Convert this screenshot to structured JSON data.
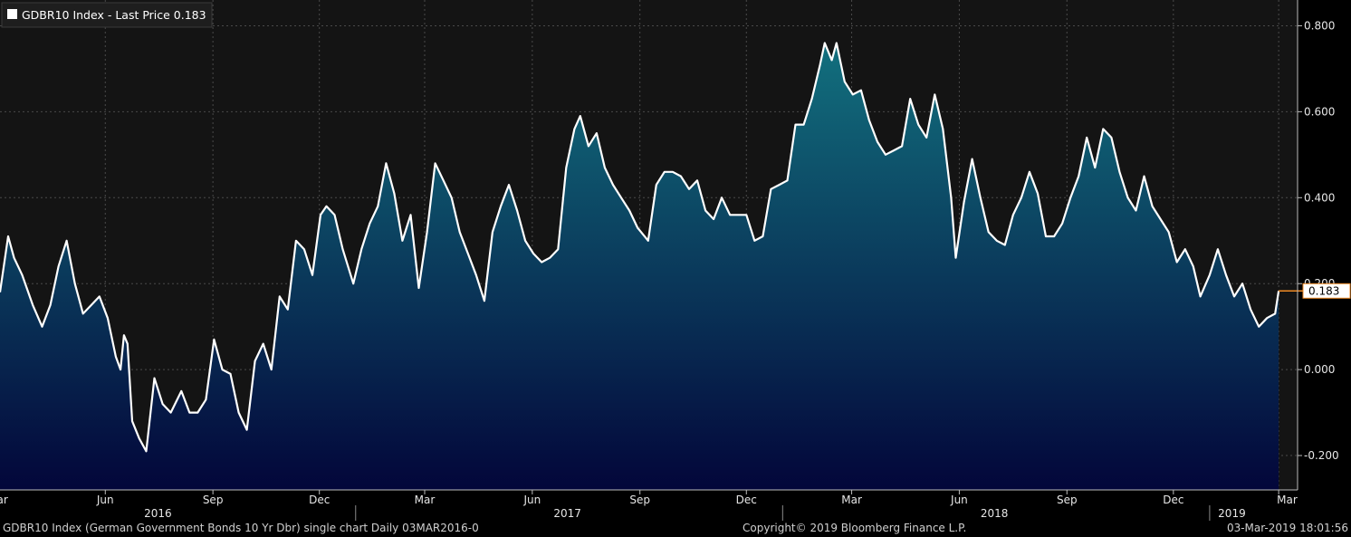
{
  "legend": {
    "text": "GDBR10 Index - Last Price 0.183"
  },
  "last_value_label": "0.183",
  "footer": {
    "left": "GDBR10 Index (German Government Bonds 10 Yr Dbr) single chart  Daily 03MAR2016-0",
    "middle": "Copyright© 2019 Bloomberg Finance L.P.",
    "right": "03-Mar-2019 18:01:56"
  },
  "colors": {
    "background_top": "#141414",
    "area_top": "#12707e",
    "area_bottom": "#03063a",
    "line": "#ffffff",
    "grid": "#4a4a4a",
    "last_marker": "#f08a24"
  },
  "chart_data": {
    "type": "area",
    "title": "GDBR10 Index - Last Price 0.183",
    "xlabel": "",
    "ylabel": "",
    "ylim": [
      -0.28,
      0.86
    ],
    "yticks": [
      -0.2,
      0.0,
      0.2,
      0.4,
      0.6,
      0.8
    ],
    "ytick_labels": [
      "-0.200",
      "0.000",
      "0.200",
      "0.400",
      "0.600",
      "0.800"
    ],
    "grid": true,
    "month_ticks": [
      {
        "label": "Mar",
        "date": "2016-03-01"
      },
      {
        "label": "Jun",
        "date": "2016-06-01"
      },
      {
        "label": "Sep",
        "date": "2016-09-01"
      },
      {
        "label": "Dec",
        "date": "2016-12-01"
      },
      {
        "label": "Mar",
        "date": "2017-03-01"
      },
      {
        "label": "Jun",
        "date": "2017-06-01"
      },
      {
        "label": "Sep",
        "date": "2017-09-01"
      },
      {
        "label": "Dec",
        "date": "2017-12-01"
      },
      {
        "label": "Mar",
        "date": "2018-03-01"
      },
      {
        "label": "Jun",
        "date": "2018-06-01"
      },
      {
        "label": "Sep",
        "date": "2018-09-01"
      },
      {
        "label": "Dec",
        "date": "2018-12-01"
      },
      {
        "label": "Mar",
        "date": "2019-03-01"
      }
    ],
    "year_labels": [
      {
        "label": "2016",
        "date": "2016-07-16"
      },
      {
        "label": "2017",
        "date": "2017-07-01"
      },
      {
        "label": "2018",
        "date": "2018-07-01"
      },
      {
        "label": "2019",
        "date": "2019-01-20"
      }
    ],
    "year_dividers": [
      "2017-01-01",
      "2018-01-01",
      "2019-01-01"
    ],
    "series": [
      {
        "name": "GDBR10 Index",
        "last": 0.183,
        "points": [
          [
            "2016-03-03",
            0.18
          ],
          [
            "2016-03-10",
            0.31
          ],
          [
            "2016-03-15",
            0.26
          ],
          [
            "2016-03-22",
            0.22
          ],
          [
            "2016-03-31",
            0.15
          ],
          [
            "2016-04-08",
            0.1
          ],
          [
            "2016-04-15",
            0.15
          ],
          [
            "2016-04-22",
            0.24
          ],
          [
            "2016-04-29",
            0.3
          ],
          [
            "2016-05-06",
            0.2
          ],
          [
            "2016-05-13",
            0.13
          ],
          [
            "2016-05-20",
            0.15
          ],
          [
            "2016-05-27",
            0.17
          ],
          [
            "2016-06-03",
            0.12
          ],
          [
            "2016-06-10",
            0.03
          ],
          [
            "2016-06-14",
            0.0
          ],
          [
            "2016-06-17",
            0.08
          ],
          [
            "2016-06-20",
            0.06
          ],
          [
            "2016-06-24",
            -0.12
          ],
          [
            "2016-06-30",
            -0.16
          ],
          [
            "2016-07-06",
            -0.19
          ],
          [
            "2016-07-13",
            -0.02
          ],
          [
            "2016-07-20",
            -0.08
          ],
          [
            "2016-07-27",
            -0.1
          ],
          [
            "2016-08-05",
            -0.05
          ],
          [
            "2016-08-12",
            -0.1
          ],
          [
            "2016-08-19",
            -0.1
          ],
          [
            "2016-08-26",
            -0.07
          ],
          [
            "2016-09-02",
            0.07
          ],
          [
            "2016-09-09",
            0.0
          ],
          [
            "2016-09-16",
            -0.01
          ],
          [
            "2016-09-23",
            -0.1
          ],
          [
            "2016-09-30",
            -0.14
          ],
          [
            "2016-10-07",
            0.02
          ],
          [
            "2016-10-14",
            0.06
          ],
          [
            "2016-10-21",
            0.0
          ],
          [
            "2016-10-28",
            0.17
          ],
          [
            "2016-11-04",
            0.14
          ],
          [
            "2016-11-11",
            0.3
          ],
          [
            "2016-11-18",
            0.28
          ],
          [
            "2016-11-25",
            0.22
          ],
          [
            "2016-12-02",
            0.36
          ],
          [
            "2016-12-07",
            0.38
          ],
          [
            "2016-12-14",
            0.36
          ],
          [
            "2016-12-21",
            0.28
          ],
          [
            "2016-12-30",
            0.2
          ],
          [
            "2017-01-06",
            0.28
          ],
          [
            "2017-01-13",
            0.34
          ],
          [
            "2017-01-20",
            0.38
          ],
          [
            "2017-01-27",
            0.48
          ],
          [
            "2017-02-03",
            0.41
          ],
          [
            "2017-02-10",
            0.3
          ],
          [
            "2017-02-17",
            0.36
          ],
          [
            "2017-02-24",
            0.19
          ],
          [
            "2017-03-03",
            0.32
          ],
          [
            "2017-03-10",
            0.48
          ],
          [
            "2017-03-17",
            0.44
          ],
          [
            "2017-03-24",
            0.4
          ],
          [
            "2017-03-31",
            0.32
          ],
          [
            "2017-04-07",
            0.27
          ],
          [
            "2017-04-14",
            0.22
          ],
          [
            "2017-04-21",
            0.16
          ],
          [
            "2017-04-28",
            0.32
          ],
          [
            "2017-05-05",
            0.38
          ],
          [
            "2017-05-12",
            0.43
          ],
          [
            "2017-05-19",
            0.37
          ],
          [
            "2017-05-26",
            0.3
          ],
          [
            "2017-06-02",
            0.27
          ],
          [
            "2017-06-09",
            0.25
          ],
          [
            "2017-06-16",
            0.26
          ],
          [
            "2017-06-23",
            0.28
          ],
          [
            "2017-06-30",
            0.47
          ],
          [
            "2017-07-07",
            0.56
          ],
          [
            "2017-07-12",
            0.59
          ],
          [
            "2017-07-19",
            0.52
          ],
          [
            "2017-07-26",
            0.55
          ],
          [
            "2017-08-02",
            0.47
          ],
          [
            "2017-08-09",
            0.43
          ],
          [
            "2017-08-16",
            0.4
          ],
          [
            "2017-08-23",
            0.37
          ],
          [
            "2017-08-30",
            0.33
          ],
          [
            "2017-09-08",
            0.3
          ],
          [
            "2017-09-15",
            0.43
          ],
          [
            "2017-09-22",
            0.46
          ],
          [
            "2017-09-29",
            0.46
          ],
          [
            "2017-10-06",
            0.45
          ],
          [
            "2017-10-13",
            0.42
          ],
          [
            "2017-10-20",
            0.44
          ],
          [
            "2017-10-27",
            0.37
          ],
          [
            "2017-11-03",
            0.35
          ],
          [
            "2017-11-10",
            0.4
          ],
          [
            "2017-11-17",
            0.36
          ],
          [
            "2017-11-24",
            0.36
          ],
          [
            "2017-12-01",
            0.36
          ],
          [
            "2017-12-08",
            0.3
          ],
          [
            "2017-12-15",
            0.31
          ],
          [
            "2017-12-22",
            0.42
          ],
          [
            "2017-12-29",
            0.43
          ],
          [
            "2018-01-05",
            0.44
          ],
          [
            "2018-01-12",
            0.57
          ],
          [
            "2018-01-19",
            0.57
          ],
          [
            "2018-01-26",
            0.63
          ],
          [
            "2018-02-02",
            0.71
          ],
          [
            "2018-02-06",
            0.76
          ],
          [
            "2018-02-12",
            0.72
          ],
          [
            "2018-02-16",
            0.76
          ],
          [
            "2018-02-23",
            0.67
          ],
          [
            "2018-03-02",
            0.64
          ],
          [
            "2018-03-09",
            0.65
          ],
          [
            "2018-03-16",
            0.58
          ],
          [
            "2018-03-23",
            0.53
          ],
          [
            "2018-03-30",
            0.5
          ],
          [
            "2018-04-06",
            0.51
          ],
          [
            "2018-04-13",
            0.52
          ],
          [
            "2018-04-20",
            0.63
          ],
          [
            "2018-04-27",
            0.57
          ],
          [
            "2018-05-04",
            0.54
          ],
          [
            "2018-05-11",
            0.64
          ],
          [
            "2018-05-18",
            0.56
          ],
          [
            "2018-05-25",
            0.4
          ],
          [
            "2018-05-29",
            0.26
          ],
          [
            "2018-06-05",
            0.39
          ],
          [
            "2018-06-12",
            0.49
          ],
          [
            "2018-06-19",
            0.4
          ],
          [
            "2018-06-26",
            0.32
          ],
          [
            "2018-07-03",
            0.3
          ],
          [
            "2018-07-10",
            0.29
          ],
          [
            "2018-07-17",
            0.36
          ],
          [
            "2018-07-24",
            0.4
          ],
          [
            "2018-07-31",
            0.46
          ],
          [
            "2018-08-07",
            0.41
          ],
          [
            "2018-08-14",
            0.31
          ],
          [
            "2018-08-21",
            0.31
          ],
          [
            "2018-08-28",
            0.34
          ],
          [
            "2018-09-04",
            0.4
          ],
          [
            "2018-09-11",
            0.45
          ],
          [
            "2018-09-18",
            0.54
          ],
          [
            "2018-09-25",
            0.47
          ],
          [
            "2018-10-02",
            0.56
          ],
          [
            "2018-10-09",
            0.54
          ],
          [
            "2018-10-16",
            0.46
          ],
          [
            "2018-10-23",
            0.4
          ],
          [
            "2018-10-30",
            0.37
          ],
          [
            "2018-11-06",
            0.45
          ],
          [
            "2018-11-13",
            0.38
          ],
          [
            "2018-11-20",
            0.35
          ],
          [
            "2018-11-27",
            0.32
          ],
          [
            "2018-12-04",
            0.25
          ],
          [
            "2018-12-11",
            0.28
          ],
          [
            "2018-12-18",
            0.24
          ],
          [
            "2018-12-24",
            0.17
          ],
          [
            "2019-01-01",
            0.22
          ],
          [
            "2019-01-08",
            0.28
          ],
          [
            "2019-01-15",
            0.22
          ],
          [
            "2019-01-22",
            0.17
          ],
          [
            "2019-01-29",
            0.2
          ],
          [
            "2019-02-05",
            0.14
          ],
          [
            "2019-02-12",
            0.1
          ],
          [
            "2019-02-19",
            0.12
          ],
          [
            "2019-02-26",
            0.13
          ],
          [
            "2019-03-01",
            0.183
          ]
        ]
      }
    ]
  }
}
